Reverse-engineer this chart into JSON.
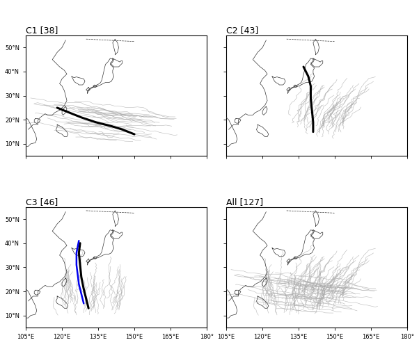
{
  "panels": [
    {
      "title": "C1 [38]",
      "cluster": 1,
      "has_blue": false
    },
    {
      "title": "C2 [43]",
      "cluster": 2,
      "has_blue": false
    },
    {
      "title": "C3 [46]",
      "cluster": 3,
      "has_blue": true
    },
    {
      "title": "All [127]",
      "cluster": 4,
      "has_blue": false
    }
  ],
  "lon_min": 105,
  "lon_max": 180,
  "lat_min": 5,
  "lat_max": 55,
  "xticks": [
    105,
    120,
    135,
    150,
    165,
    180
  ],
  "yticks": [
    10,
    20,
    30,
    40,
    50
  ],
  "xlabels": [
    "105°E",
    "120°E",
    "135°E",
    "150°E",
    "165°E",
    "180°"
  ],
  "ylabels": [
    "10°N",
    "20°N",
    "30°N",
    "40°N",
    "50°N"
  ],
  "track_color": "#aaaaaa",
  "mean_color": "#000000",
  "blue_color": "#0000ee",
  "track_lw": 0.45,
  "mean_lw": 2.2,
  "blue_lw": 1.8,
  "coast_color": "#333333",
  "coast_lw": 0.5,
  "title_fontsize": 9,
  "tick_fontsize": 6,
  "C1_mean_lons": [
    150,
    145,
    140,
    134,
    128,
    123,
    118
  ],
  "C1_mean_lats": [
    14,
    16,
    17.5,
    19,
    21,
    23,
    25
  ],
  "C2_mean_lons": [
    141,
    141,
    140.5,
    140,
    140,
    139,
    137
  ],
  "C2_mean_lats": [
    15,
    19,
    24,
    29,
    34,
    38,
    42
  ],
  "C3_mean_lons": [
    131,
    130,
    129,
    128,
    127.5,
    127,
    127.5
  ],
  "C3_mean_lats": [
    13,
    17,
    21,
    26,
    31,
    36,
    40
  ],
  "soliku_lons": [
    129,
    128,
    127,
    126.5,
    126,
    126,
    127
  ],
  "soliku_lats": [
    15,
    19,
    23,
    27,
    31,
    36,
    41
  ]
}
